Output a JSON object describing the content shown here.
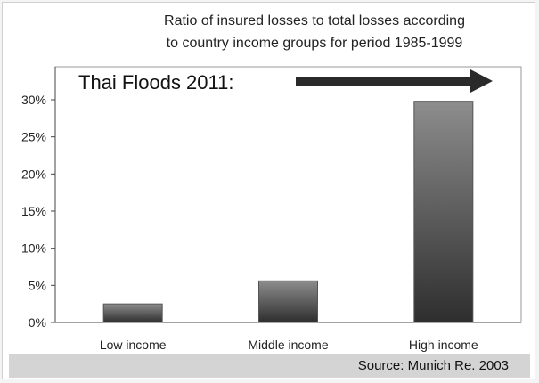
{
  "chart_data": {
    "type": "bar",
    "title_line1": "Ratio of insured losses to total losses according",
    "title_line2": "to country income groups for period 1985-1999",
    "categories": [
      "Low income",
      "Middle income",
      "High income"
    ],
    "values": [
      2.5,
      5.6,
      29.8
    ],
    "ylim": [
      0,
      30
    ],
    "yticks": [
      0,
      5,
      10,
      15,
      20,
      25,
      30
    ],
    "ytick_labels": [
      "0%",
      "5%",
      "10%",
      "15%",
      "20%",
      "25%",
      "30%"
    ],
    "annotation": "Thai Floods 2011:",
    "source": "Source: Munich Re. 2003",
    "grid": false,
    "legend": "none"
  },
  "colors": {
    "bar_light": "#8d8d8d",
    "bar_dark": "#2e2e2e",
    "arrow": "#2a2a2a",
    "axis": "#444444"
  }
}
